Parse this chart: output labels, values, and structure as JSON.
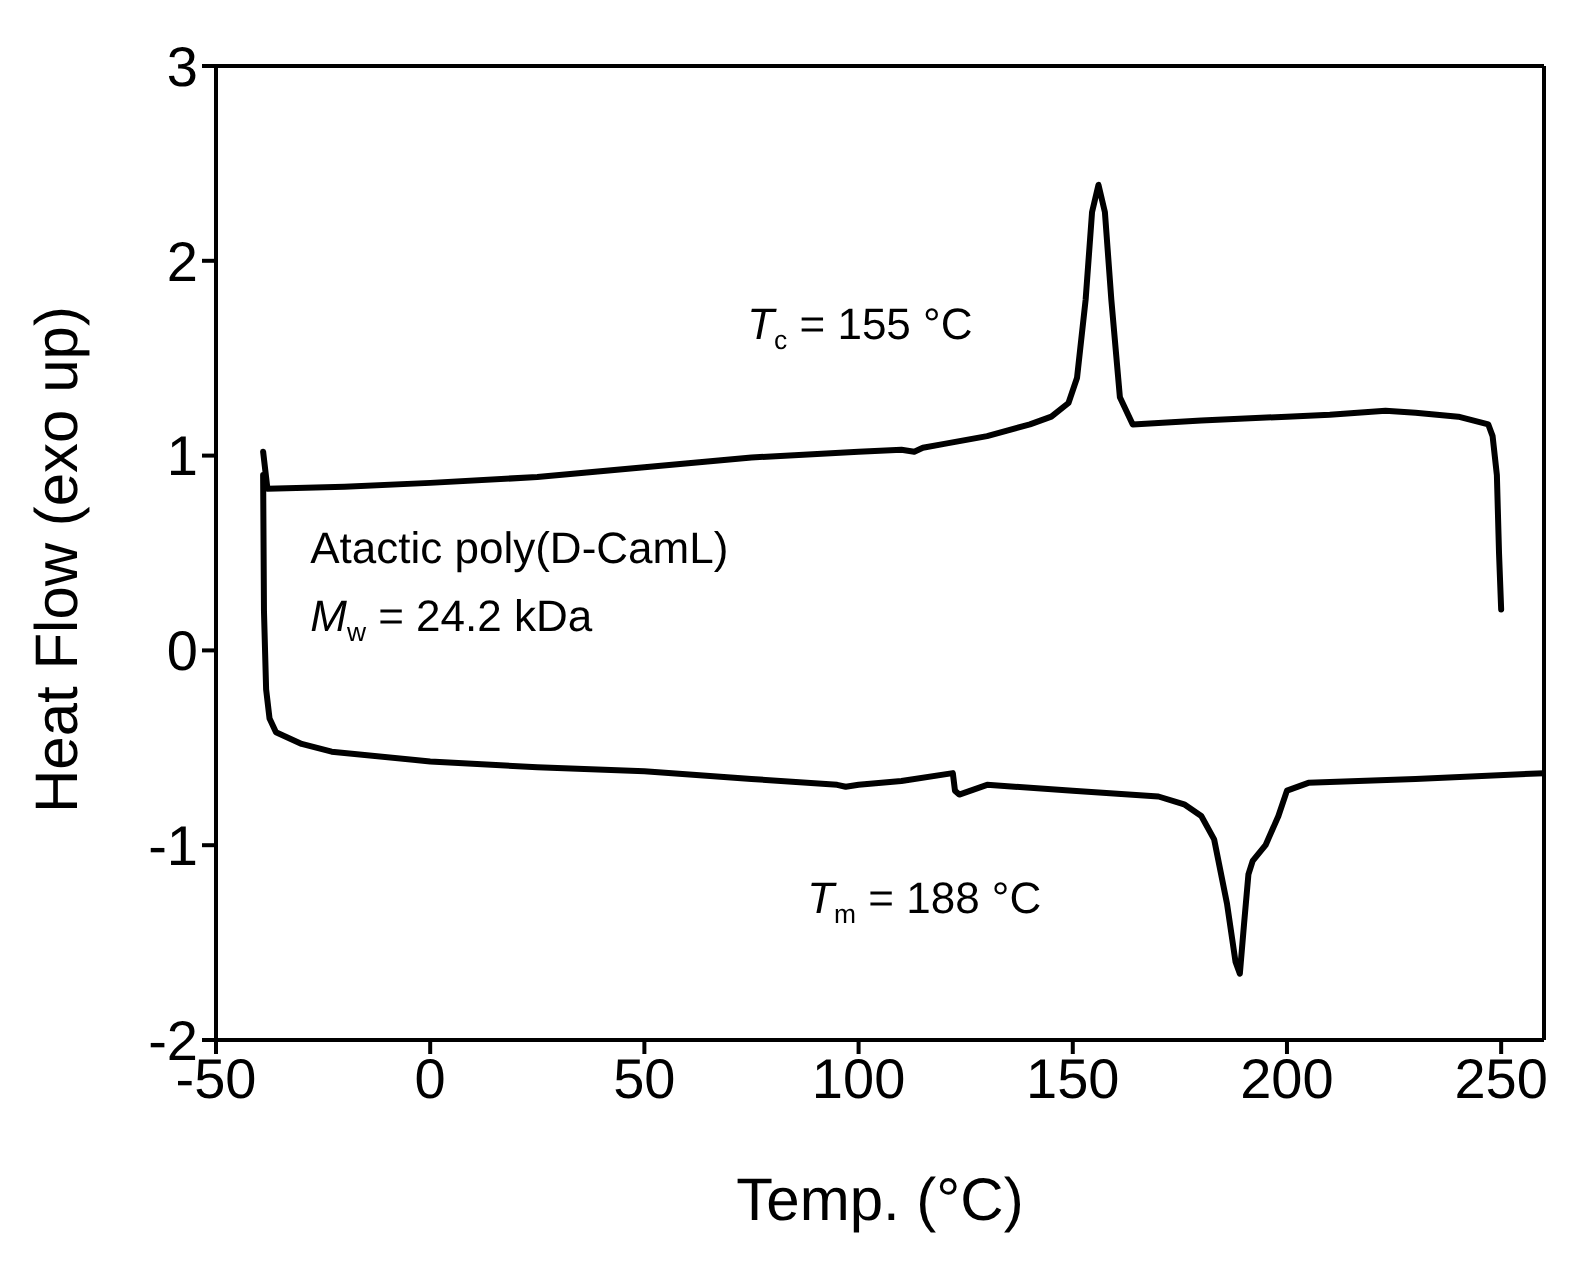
{
  "chart_data": {
    "type": "line",
    "xlabel": "Temp. (°C)",
    "ylabel": "Heat Flow (exo up)",
    "xlim": [
      -50,
      260
    ],
    "xticks": [
      -50,
      0,
      50,
      100,
      150,
      200,
      250
    ],
    "ylim": [
      -2,
      3
    ],
    "yticks": [
      -2,
      -1,
      0,
      1,
      2,
      3
    ],
    "marker": "none",
    "line_style": "solid",
    "annotations": [
      "T$_{c}$ = 155 °C",
      "T$_{m}$ = 188 °C",
      "Atactic poly(D-CamL)",
      "M$_{w}$ = 24.2 kDa"
    ],
    "series": [
      {
        "color": "#000000",
        "x": [
          250,
          249.5,
          249,
          248,
          247,
          240,
          230,
          223,
          210,
          200,
          180,
          164,
          161,
          159,
          157.5,
          156,
          154.5,
          153,
          151,
          149,
          145,
          140,
          130,
          120,
          115,
          113,
          110,
          100,
          75,
          50,
          25,
          0,
          -20,
          -38,
          -39
        ],
        "values": [
          0.21,
          0.5,
          0.9,
          1.1,
          1.16,
          1.2,
          1.22,
          1.23,
          1.21,
          1.2,
          1.18,
          1.16,
          1.3,
          1.8,
          2.25,
          2.39,
          2.25,
          1.8,
          1.4,
          1.27,
          1.2,
          1.16,
          1.1,
          1.06,
          1.04,
          1.02,
          1.03,
          1.02,
          0.99,
          0.94,
          0.89,
          0.86,
          0.84,
          0.83,
          1.02
        ]
      },
      {
        "color": "#000000",
        "x": [
          -39,
          -38.8,
          -38.3,
          -37.5,
          -36,
          -30,
          -23,
          0,
          25,
          50,
          75,
          95,
          97,
          100,
          110,
          122,
          122.5,
          123.5,
          130,
          150,
          170,
          176,
          180,
          183,
          186,
          188,
          189,
          190,
          191,
          192,
          195,
          198,
          200,
          205,
          230,
          260
        ],
        "values": [
          0.9,
          0.2,
          -0.2,
          -0.35,
          -0.42,
          -0.48,
          -0.52,
          -0.57,
          -0.6,
          -0.62,
          -0.66,
          -0.69,
          -0.7,
          -0.69,
          -0.67,
          -0.63,
          -0.72,
          -0.74,
          -0.69,
          -0.72,
          -0.75,
          -0.79,
          -0.85,
          -0.97,
          -1.3,
          -1.6,
          -1.66,
          -1.4,
          -1.15,
          -1.08,
          -1.0,
          -0.85,
          -0.72,
          -0.68,
          -0.66,
          -0.63
        ]
      }
    ]
  }
}
